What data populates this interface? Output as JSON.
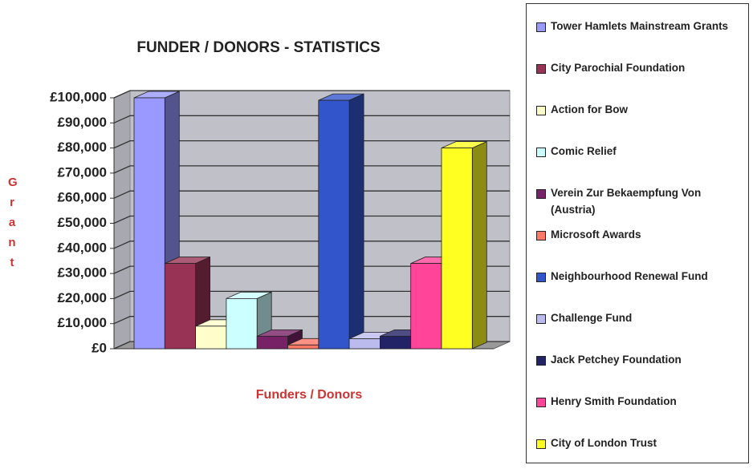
{
  "chart_data": {
    "type": "bar3d",
    "title": "FUNDER / DONORS - STATISTICS",
    "x_label": "Funders / Donors",
    "y_label": "Grant",
    "ylim": [
      0,
      100000
    ],
    "yticks": [
      {
        "value": 0,
        "label": "£0"
      },
      {
        "value": 10000,
        "label": "£10,000"
      },
      {
        "value": 20000,
        "label": "£20,000"
      },
      {
        "value": 30000,
        "label": "£30,000"
      },
      {
        "value": 40000,
        "label": "£40,000"
      },
      {
        "value": 50000,
        "label": "£50,000"
      },
      {
        "value": 60000,
        "label": "£60,000"
      },
      {
        "value": 70000,
        "label": "£70,000"
      },
      {
        "value": 80000,
        "label": "£80,000"
      },
      {
        "value": 90000,
        "label": "£90,000"
      },
      {
        "value": 100000,
        "label": "£100,000"
      }
    ],
    "grid": true,
    "legend": "right",
    "series": [
      {
        "name": "Tower Hamlets Mainstream Grants",
        "color": "#9999ff",
        "values": [
          100000
        ]
      },
      {
        "name": "City Parochial Foundation",
        "color": "#993355",
        "values": [
          34000
        ]
      },
      {
        "name": "Action for Bow",
        "color": "#ffffcc",
        "values": [
          9000
        ]
      },
      {
        "name": "Comic Relief",
        "color": "#ccffff",
        "values": [
          20000
        ]
      },
      {
        "name": "Verein Zur Bekaempfung Von (Austria)",
        "color": "#772266",
        "values": [
          5000
        ]
      },
      {
        "name": "Microsoft Awards",
        "color": "#ff7766",
        "values": [
          1500
        ]
      },
      {
        "name": "Neighbourhood Renewal Fund",
        "color": "#3355cc",
        "values": [
          99000
        ]
      },
      {
        "name": "Challenge Fund",
        "color": "#bbbbee",
        "values": [
          4000
        ]
      },
      {
        "name": "Jack Petchey Foundation",
        "color": "#222266",
        "values": [
          5000
        ]
      },
      {
        "name": "Henry Smith Foundation",
        "color": "#ff4499",
        "values": [
          34000
        ]
      },
      {
        "name": "City of London Trust",
        "color": "#ffff22",
        "values": [
          80000
        ]
      }
    ]
  }
}
